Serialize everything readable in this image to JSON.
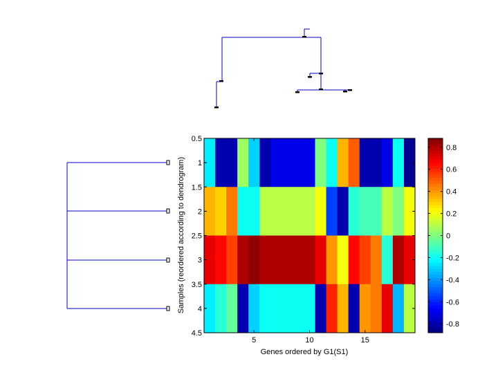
{
  "chart_data": {
    "type": "heatmap",
    "title": "",
    "xlabel": "Genes ordered by G1(S1)",
    "ylabel": "Samples (reordered according to dendrogram)",
    "xlim": [
      0.5,
      19.5
    ],
    "ylim": [
      0.5,
      4.5
    ],
    "x_ticks": [
      5,
      10,
      15
    ],
    "y_ticks": [
      0.5,
      1,
      1.5,
      2,
      2.5,
      3,
      3.5,
      4,
      4.5
    ],
    "colormap": "jet",
    "color_range": [
      -0.88,
      0.88
    ],
    "colorbar_ticks": [
      -0.8,
      -0.6,
      -0.4,
      -0.2,
      0,
      0.2,
      0.4,
      0.6,
      0.8
    ],
    "rows": [
      [
        -0.25,
        -0.8,
        -0.8,
        0.05,
        -0.3,
        -0.8,
        -0.7,
        -0.7,
        -0.7,
        -0.7,
        0.0,
        -0.2,
        0.35,
        0.5,
        -0.8,
        -0.8,
        -0.7,
        -0.2,
        -0.85
      ],
      [
        0.35,
        0.3,
        0.45,
        -0.2,
        -0.2,
        0.1,
        0.1,
        0.1,
        0.1,
        0.1,
        0.2,
        -0.55,
        -0.8,
        -0.15,
        -0.1,
        -0.1,
        0.1,
        0.0,
        0.2
      ],
      [
        0.7,
        0.65,
        0.55,
        0.8,
        0.85,
        0.8,
        0.8,
        0.8,
        0.8,
        0.8,
        0.7,
        0.4,
        0.2,
        0.65,
        0.55,
        0.45,
        -0.15,
        0.8,
        0.7
      ],
      [
        -0.25,
        -0.15,
        -0.05,
        -0.8,
        -0.3,
        -0.2,
        -0.2,
        -0.2,
        -0.2,
        -0.2,
        -0.8,
        0.6,
        0.35,
        -0.8,
        0.4,
        0.45,
        0.7,
        -0.35,
        0.1
      ]
    ],
    "row_dendrogram": {
      "links": [
        [
          1,
          2,
          1.0
        ],
        [
          3,
          4,
          1.0
        ],
        [
          12,
          34,
          1.0
        ]
      ]
    },
    "col_dendrogram": {
      "link_heights": [
        0.13,
        0.12,
        0.21,
        0.25,
        0.28,
        0.3,
        0.42,
        0.47,
        0.53,
        1.0
      ]
    }
  }
}
